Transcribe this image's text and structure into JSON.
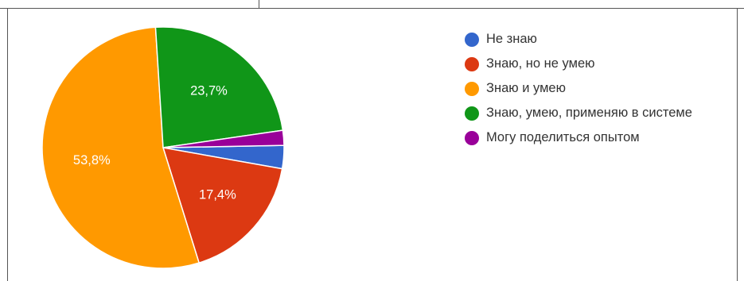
{
  "chart_data": {
    "type": "pie",
    "title": "",
    "slices": [
      {
        "label": "Не знаю",
        "value": 3.1,
        "value_label": "",
        "color": "#3366cc"
      },
      {
        "label": "Знаю, но не умею",
        "value": 17.4,
        "value_label": "17,4%",
        "color": "#dc3912"
      },
      {
        "label": "Знаю и умею",
        "value": 53.8,
        "value_label": "53,8%",
        "color": "#ff9900"
      },
      {
        "label": "Знаю, умею, применяю в системе",
        "value": 23.7,
        "value_label": "23,7%",
        "color": "#109618"
      },
      {
        "label": "Могу поделиться опытом",
        "value": 2.0,
        "value_label": "",
        "color": "#990099"
      }
    ],
    "legend_position": "right"
  }
}
